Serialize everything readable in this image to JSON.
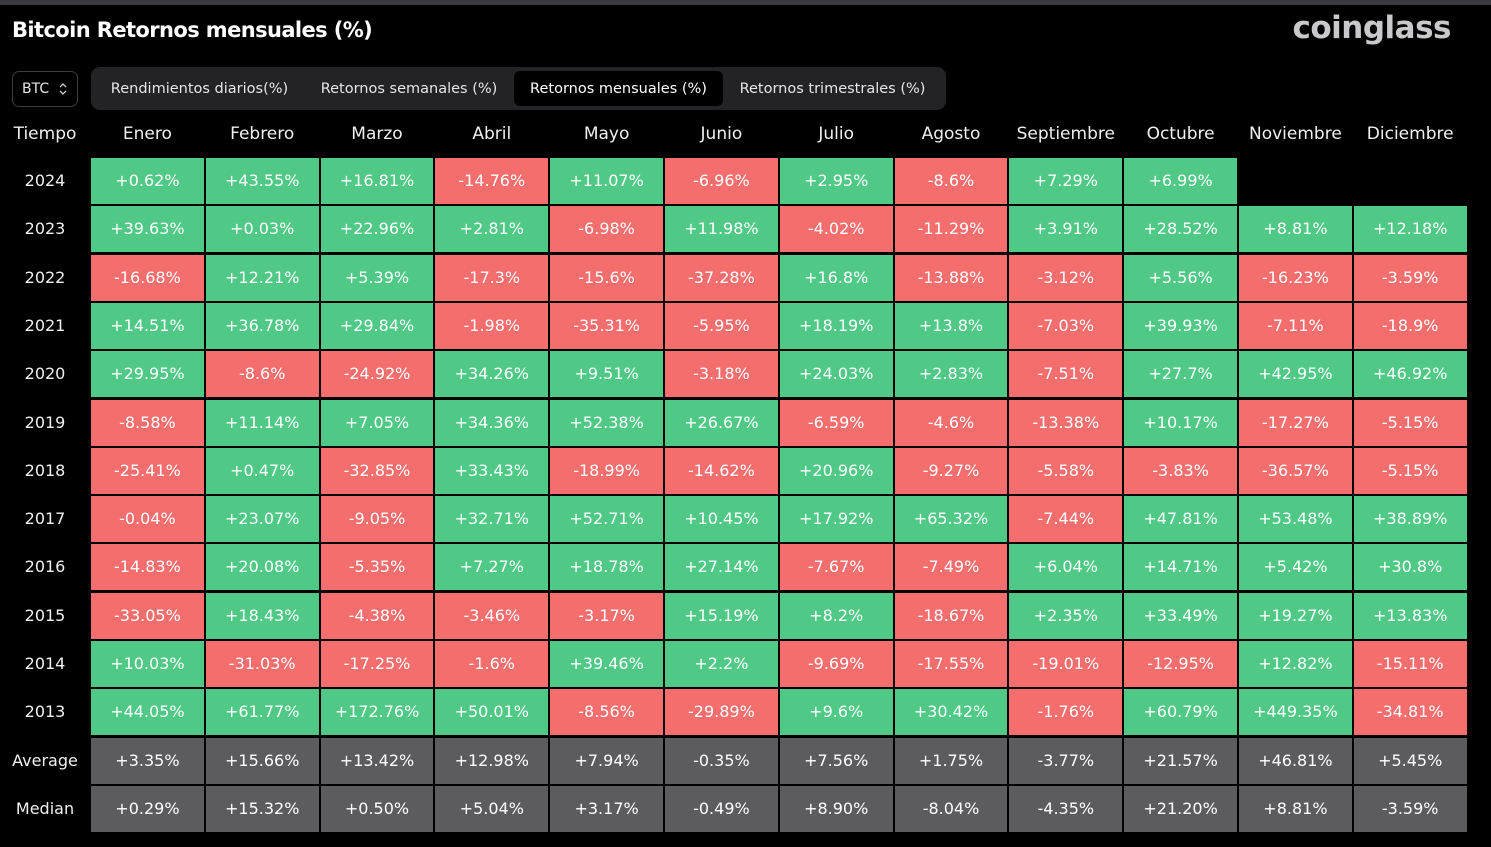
{
  "header": {
    "title": "Bitcoin Retornos mensuales (%)",
    "brand": "coinglass"
  },
  "asset_selector": {
    "value": "BTC",
    "icon": "chevron-up-down-icon"
  },
  "tabs": [
    {
      "label": "Rendimientos diarios(%)",
      "active": false
    },
    {
      "label": "Retornos semanales (%)",
      "active": false
    },
    {
      "label": "Retornos mensuales (%)",
      "active": true
    },
    {
      "label": "Retornos trimestrales (%)",
      "active": false
    }
  ],
  "colors": {
    "positive": "#4fc985",
    "negative": "#f46e6e",
    "stat": "#5c5c5e",
    "background": "#000000"
  },
  "table": {
    "columns": [
      "Tiempo",
      "Enero",
      "Febrero",
      "Marzo",
      "Abril",
      "Mayo",
      "Junio",
      "Julio",
      "Agosto",
      "Septiembre",
      "Octubre",
      "Noviembre",
      "Diciembre"
    ],
    "rows": [
      {
        "label": "2024",
        "type": "year",
        "values": [
          "+0.62%",
          "+43.55%",
          "+16.81%",
          "-14.76%",
          "+11.07%",
          "-6.96%",
          "+2.95%",
          "-8.6%",
          "+7.29%",
          "+6.99%",
          "",
          ""
        ]
      },
      {
        "label": "2023",
        "type": "year",
        "values": [
          "+39.63%",
          "+0.03%",
          "+22.96%",
          "+2.81%",
          "-6.98%",
          "+11.98%",
          "-4.02%",
          "-11.29%",
          "+3.91%",
          "+28.52%",
          "+8.81%",
          "+12.18%"
        ]
      },
      {
        "label": "2022",
        "type": "year",
        "values": [
          "-16.68%",
          "+12.21%",
          "+5.39%",
          "-17.3%",
          "-15.6%",
          "-37.28%",
          "+16.8%",
          "-13.88%",
          "-3.12%",
          "+5.56%",
          "-16.23%",
          "-3.59%"
        ]
      },
      {
        "label": "2021",
        "type": "year",
        "values": [
          "+14.51%",
          "+36.78%",
          "+29.84%",
          "-1.98%",
          "-35.31%",
          "-5.95%",
          "+18.19%",
          "+13.8%",
          "-7.03%",
          "+39.93%",
          "-7.11%",
          "-18.9%"
        ]
      },
      {
        "label": "2020",
        "type": "year",
        "values": [
          "+29.95%",
          "-8.6%",
          "-24.92%",
          "+34.26%",
          "+9.51%",
          "-3.18%",
          "+24.03%",
          "+2.83%",
          "-7.51%",
          "+27.7%",
          "+42.95%",
          "+46.92%"
        ]
      },
      {
        "label": "2019",
        "type": "year",
        "values": [
          "-8.58%",
          "+11.14%",
          "+7.05%",
          "+34.36%",
          "+52.38%",
          "+26.67%",
          "-6.59%",
          "-4.6%",
          "-13.38%",
          "+10.17%",
          "-17.27%",
          "-5.15%"
        ]
      },
      {
        "label": "2018",
        "type": "year",
        "values": [
          "-25.41%",
          "+0.47%",
          "-32.85%",
          "+33.43%",
          "-18.99%",
          "-14.62%",
          "+20.96%",
          "-9.27%",
          "-5.58%",
          "-3.83%",
          "-36.57%",
          "-5.15%"
        ]
      },
      {
        "label": "2017",
        "type": "year",
        "values": [
          "-0.04%",
          "+23.07%",
          "-9.05%",
          "+32.71%",
          "+52.71%",
          "+10.45%",
          "+17.92%",
          "+65.32%",
          "-7.44%",
          "+47.81%",
          "+53.48%",
          "+38.89%"
        ]
      },
      {
        "label": "2016",
        "type": "year",
        "values": [
          "-14.83%",
          "+20.08%",
          "-5.35%",
          "+7.27%",
          "+18.78%",
          "+27.14%",
          "-7.67%",
          "-7.49%",
          "+6.04%",
          "+14.71%",
          "+5.42%",
          "+30.8%"
        ]
      },
      {
        "label": "2015",
        "type": "year",
        "values": [
          "-33.05%",
          "+18.43%",
          "-4.38%",
          "-3.46%",
          "-3.17%",
          "+15.19%",
          "+8.2%",
          "-18.67%",
          "+2.35%",
          "+33.49%",
          "+19.27%",
          "+13.83%"
        ]
      },
      {
        "label": "2014",
        "type": "year",
        "values": [
          "+10.03%",
          "-31.03%",
          "-17.25%",
          "-1.6%",
          "+39.46%",
          "+2.2%",
          "-9.69%",
          "-17.55%",
          "-19.01%",
          "-12.95%",
          "+12.82%",
          "-15.11%"
        ]
      },
      {
        "label": "2013",
        "type": "year",
        "values": [
          "+44.05%",
          "+61.77%",
          "+172.76%",
          "+50.01%",
          "-8.56%",
          "-29.89%",
          "+9.6%",
          "+30.42%",
          "-1.76%",
          "+60.79%",
          "+449.35%",
          "-34.81%"
        ]
      },
      {
        "label": "Average",
        "type": "stat",
        "values": [
          "+3.35%",
          "+15.66%",
          "+13.42%",
          "+12.98%",
          "+7.94%",
          "-0.35%",
          "+7.56%",
          "+1.75%",
          "-3.77%",
          "+21.57%",
          "+46.81%",
          "+5.45%"
        ]
      },
      {
        "label": "Median",
        "type": "stat",
        "values": [
          "+0.29%",
          "+15.32%",
          "+0.50%",
          "+5.04%",
          "+3.17%",
          "-0.49%",
          "+8.90%",
          "-8.04%",
          "-4.35%",
          "+21.20%",
          "+8.81%",
          "-3.59%"
        ]
      }
    ]
  }
}
